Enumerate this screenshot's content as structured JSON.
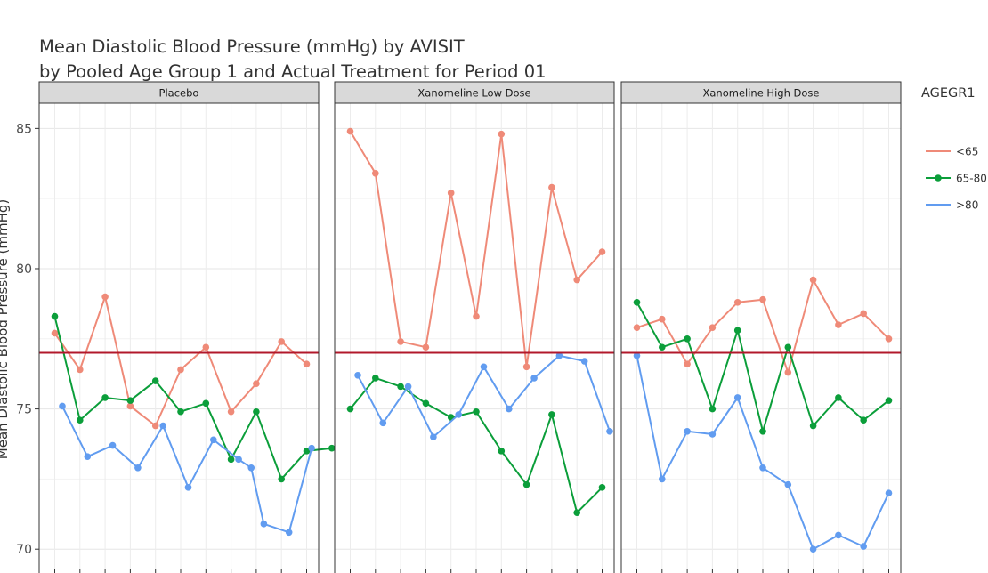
{
  "chart_data": {
    "type": "line",
    "title": "Mean Diastolic Blood Pressure (mmHg) by AVISIT",
    "subtitle": "by Pooled Age Group 1 and Actual Treatment for Period 01",
    "ylabel": "Mean Diastolic Blood Pressure (mmHg)",
    "xlabel": "",
    "ylim": [
      69.15,
      85.9
    ],
    "yticks": [
      70,
      75,
      80,
      85
    ],
    "ytick_labels": [
      "70",
      "75",
      "80",
      "85"
    ],
    "reference_line": {
      "y": 77,
      "color": "#b2182b"
    },
    "grid": true,
    "legend": {
      "title": "AGEGR1",
      "placement": "right",
      "entries": [
        {
          "label": "<65",
          "color": "#ef8a78"
        },
        {
          "label": "65-80",
          "color": "#0b9e3a"
        },
        {
          "label": ">80",
          "color": "#619cf0"
        }
      ]
    },
    "panels": [
      {
        "name": "Placebo",
        "series": [
          {
            "name": "<65",
            "x": [
              1,
              2,
              3,
              4,
              5,
              6,
              7,
              8,
              9,
              10,
              11
            ],
            "values": [
              77.7,
              76.4,
              79.0,
              75.1,
              74.4,
              76.4,
              77.2,
              74.9,
              75.9,
              77.4,
              76.6
            ]
          },
          {
            "name": "65-80",
            "x": [
              1,
              2,
              3,
              4,
              5,
              6,
              7,
              8,
              9,
              10,
              11,
              12
            ],
            "values": [
              78.3,
              74.6,
              75.4,
              75.3,
              76.0,
              74.9,
              75.2,
              73.2,
              74.9,
              72.5,
              73.5,
              73.6
            ]
          },
          {
            "name": ">80",
            "x": [
              1.3,
              2.3,
              3.3,
              4.3,
              5.3,
              6.3,
              7.3,
              8.3,
              8.8,
              9.3,
              10.3,
              11.2
            ],
            "values": [
              75.1,
              73.3,
              73.7,
              72.9,
              74.4,
              72.2,
              73.9,
              73.2,
              72.9,
              70.9,
              70.6,
              73.6
            ]
          }
        ]
      },
      {
        "name": "Xanomeline Low Dose",
        "series": [
          {
            "name": "<65",
            "x": [
              1,
              2,
              3,
              4,
              5,
              6,
              7,
              8,
              9,
              10,
              11
            ],
            "values": [
              84.9,
              83.4,
              77.4,
              77.2,
              82.7,
              78.3,
              84.8,
              76.5,
              82.9,
              79.6,
              80.6
            ]
          },
          {
            "name": "65-80",
            "x": [
              1,
              2,
              3,
              4,
              5,
              6,
              7,
              8,
              9,
              10,
              11
            ],
            "values": [
              75.0,
              76.1,
              75.8,
              75.2,
              74.7,
              74.9,
              73.5,
              72.3,
              74.8,
              71.3,
              72.2
            ]
          },
          {
            "name": ">80",
            "x": [
              1.3,
              2.3,
              3.3,
              4.3,
              5.3,
              6.3,
              7.3,
              8.3,
              9.3,
              10.3,
              11.3
            ],
            "values": [
              76.2,
              74.5,
              75.8,
              74.0,
              74.8,
              76.5,
              75.0,
              76.1,
              76.9,
              76.7,
              74.2
            ]
          }
        ]
      },
      {
        "name": "Xanomeline High Dose",
        "series": [
          {
            "name": "<65",
            "x": [
              1,
              2,
              3,
              4,
              5,
              6,
              7,
              8,
              9,
              10,
              11
            ],
            "values": [
              77.9,
              78.2,
              76.6,
              77.9,
              78.8,
              78.9,
              76.3,
              79.6,
              78.0,
              78.4,
              77.5
            ]
          },
          {
            "name": "65-80",
            "x": [
              1,
              2,
              3,
              4,
              5,
              6,
              7,
              8,
              9,
              10,
              11
            ],
            "values": [
              78.8,
              77.2,
              77.5,
              75.0,
              77.8,
              74.2,
              77.2,
              74.4,
              75.4,
              74.6,
              75.3
            ]
          },
          {
            "name": ">80",
            "x": [
              1,
              2,
              3,
              4,
              5,
              6,
              7,
              8,
              9,
              10,
              11
            ],
            "values": [
              76.9,
              72.5,
              74.2,
              74.1,
              75.4,
              72.9,
              72.3,
              70.0,
              70.5,
              70.1,
              72.0
            ]
          }
        ]
      }
    ]
  }
}
